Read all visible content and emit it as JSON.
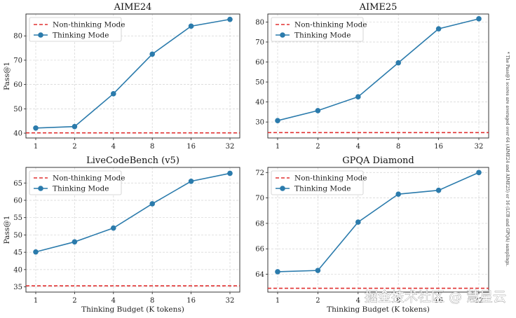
{
  "chart_data": [
    {
      "type": "line",
      "title": "AIME24",
      "ylabel": "Pass@1",
      "xlabel": "",
      "x_categories": [
        "1",
        "2",
        "4",
        "8",
        "16",
        "32"
      ],
      "ylim": [
        38,
        89
      ],
      "yticks": [
        40,
        50,
        60,
        70,
        80
      ],
      "series": [
        {
          "name": "Thinking Mode",
          "style": "line-marker",
          "color": "#2b7bac",
          "values": [
            42.1,
            42.7,
            56.2,
            72.5,
            84.0,
            86.8
          ]
        },
        {
          "name": "Non-thinking Mode",
          "style": "dashed-hline",
          "color": "#e03131",
          "value": 40.1
        }
      ],
      "legend": [
        "Non-thinking Mode",
        "Thinking Mode"
      ],
      "legend_position": "top-left",
      "grid": true
    },
    {
      "type": "line",
      "title": "AIME25",
      "ylabel": "",
      "xlabel": "",
      "x_categories": [
        "1",
        "2",
        "4",
        "8",
        "16",
        "32"
      ],
      "ylim": [
        22,
        84
      ],
      "yticks": [
        30,
        40,
        50,
        60,
        70,
        80
      ],
      "series": [
        {
          "name": "Thinking Mode",
          "style": "line-marker",
          "color": "#2b7bac",
          "values": [
            30.7,
            35.7,
            42.6,
            59.6,
            76.6,
            81.6
          ]
        },
        {
          "name": "Non-thinking Mode",
          "style": "dashed-hline",
          "color": "#e03131",
          "value": 24.7
        }
      ],
      "legend": [
        "Non-thinking Mode",
        "Thinking Mode"
      ],
      "legend_position": "top-left",
      "grid": true
    },
    {
      "type": "line",
      "title": "LiveCodeBench (v5)",
      "ylabel": "Pass@1",
      "xlabel": "Thinking Budget (K tokens)",
      "x_categories": [
        "1",
        "2",
        "4",
        "8",
        "16",
        "32"
      ],
      "ylim": [
        33.5,
        69.5
      ],
      "yticks": [
        35,
        40,
        45,
        50,
        55,
        60,
        65
      ],
      "series": [
        {
          "name": "Thinking Mode",
          "style": "line-marker",
          "color": "#2b7bac",
          "values": [
            45.1,
            48.0,
            52.0,
            59.0,
            65.5,
            67.8
          ]
        },
        {
          "name": "Non-thinking Mode",
          "style": "dashed-hline",
          "color": "#e03131",
          "value": 35.3
        }
      ],
      "legend": [
        "Non-thinking Mode",
        "Thinking Mode"
      ],
      "legend_position": "top-left",
      "grid": true
    },
    {
      "type": "line",
      "title": "GPQA Diamond",
      "ylabel": "",
      "xlabel": "Thinking Budget (K tokens)",
      "x_categories": [
        "1",
        "2",
        "4",
        "8",
        "16",
        "32"
      ],
      "ylim": [
        62.6,
        72.4
      ],
      "yticks": [
        64,
        66,
        68,
        70,
        72
      ],
      "series": [
        {
          "name": "Thinking Mode",
          "style": "line-marker",
          "color": "#2b7bac",
          "values": [
            64.2,
            64.3,
            68.1,
            70.3,
            70.6,
            72.0
          ]
        },
        {
          "name": "Non-thinking Mode",
          "style": "dashed-hline",
          "color": "#e03131",
          "value": 62.9
        }
      ],
      "legend": [
        "Non-thinking Mode",
        "Thinking Mode"
      ],
      "legend_position": "top-left",
      "grid": true
    }
  ],
  "footnote": "* The Pass@1 scores are averaged over 64 (AIME24 and AIME25) or 16 (LCB and GPQA) samplings.",
  "watermark": "掘金技术社区 @ 慧星云"
}
